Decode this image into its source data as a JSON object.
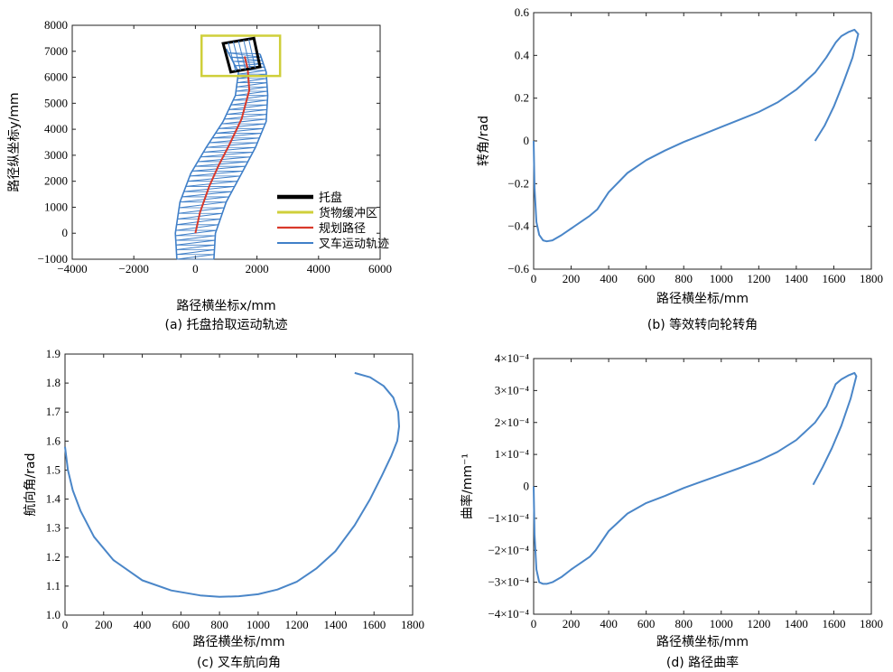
{
  "chart_data": [
    {
      "type": "line",
      "panel": "a",
      "caption": "(a) 托盘拾取运动轨迹",
      "xlabel": "路径横坐标x/mm",
      "ylabel": "路径纵坐标y/mm",
      "xlim": [
        -4000,
        6000
      ],
      "ylim": [
        -1000,
        8000
      ],
      "xticks": [
        -4000,
        -2000,
        0,
        2000,
        4000,
        6000
      ],
      "yticks": [
        -1000,
        0,
        1000,
        2000,
        3000,
        4000,
        5000,
        6000,
        7000,
        8000
      ],
      "xtick_labels": [
        "−4000",
        "−2000",
        "0",
        "2000",
        "4000",
        "6000"
      ],
      "ytick_labels": [
        "−1000",
        "0",
        "1000",
        "2000",
        "3000",
        "4000",
        "5000",
        "6000",
        "7000",
        "8000"
      ],
      "legend": [
        "托盘",
        "货物缓冲区",
        "规划路径",
        "叉车运动轨迹"
      ],
      "legend_colors": [
        "#000000",
        "#cfcf3a",
        "#d9392b",
        "#3f7fc8"
      ],
      "pallet": [
        [
          900,
          7300
        ],
        [
          1900,
          7500
        ],
        [
          2100,
          6400
        ],
        [
          1150,
          6200
        ]
      ],
      "buffer_zone": {
        "x": [
          200,
          2750
        ],
        "y": [
          6050,
          7600
        ]
      },
      "planned_path": {
        "x": [
          0,
          150,
          450,
          750,
          1100,
          1500,
          1750,
          1700,
          1600
        ],
        "y": [
          0,
          800,
          1800,
          2600,
          3400,
          4400,
          5500,
          6300,
          6800
        ]
      },
      "body_sweep": {
        "left_x": [
          -600,
          -650,
          -500,
          -150,
          350,
          900,
          1300,
          1400,
          1000
        ],
        "left_y": [
          -1000,
          0,
          1200,
          2300,
          3300,
          4300,
          5300,
          6200,
          7100
        ],
        "right_x": [
          600,
          650,
          1000,
          1500,
          1950,
          2300,
          2350,
          2300,
          2100
        ],
        "right_y": [
          -1000,
          0,
          1200,
          2300,
          3300,
          4300,
          5300,
          6200,
          6900
        ]
      }
    },
    {
      "type": "line",
      "panel": "b",
      "caption": "(b) 等效转向轮转角",
      "xlabel": "路径横坐标/mm",
      "ylabel": "转角/rad",
      "xlim": [
        0,
        1800
      ],
      "ylim": [
        -0.6,
        0.6
      ],
      "xticks": [
        0,
        200,
        400,
        600,
        800,
        1000,
        1200,
        1400,
        1600,
        1800
      ],
      "yticks": [
        -0.6,
        -0.4,
        -0.2,
        0,
        0.2,
        0.4,
        0.6
      ],
      "xtick_labels": [
        "0",
        "200",
        "400",
        "600",
        "800",
        "1000",
        "1200",
        "1400",
        "1600",
        "1800"
      ],
      "ytick_labels": [
        "−0.6",
        "−0.4",
        "−0.2",
        "0",
        "0.2",
        "0.4",
        "0.6"
      ],
      "series": [
        {
          "x": [
            0,
            5,
            15,
            30,
            50,
            70,
            100,
            150,
            200,
            250,
            300,
            340,
            400,
            500,
            600,
            700,
            800,
            900,
            1000,
            1100,
            1200,
            1300,
            1400,
            1500,
            1560,
            1610,
            1640,
            1680,
            1710,
            1730,
            1700,
            1650,
            1600,
            1550,
            1500
          ],
          "y": [
            0.0,
            -0.22,
            -0.38,
            -0.44,
            -0.465,
            -0.47,
            -0.465,
            -0.44,
            -0.41,
            -0.38,
            -0.35,
            -0.32,
            -0.24,
            -0.15,
            -0.09,
            -0.045,
            -0.005,
            0.03,
            0.065,
            0.1,
            0.135,
            0.18,
            0.24,
            0.32,
            0.39,
            0.46,
            0.49,
            0.51,
            0.52,
            0.5,
            0.39,
            0.27,
            0.16,
            0.07,
            0.0
          ]
        }
      ]
    },
    {
      "type": "line",
      "panel": "c",
      "caption": "(c) 叉车航向角",
      "xlabel": "路径横坐标/mm",
      "ylabel": "航向角/rad",
      "xlim": [
        0,
        1800
      ],
      "ylim": [
        1.0,
        1.9
      ],
      "xticks": [
        0,
        200,
        400,
        600,
        800,
        1000,
        1200,
        1400,
        1600,
        1800
      ],
      "yticks": [
        1.0,
        1.1,
        1.2,
        1.3,
        1.4,
        1.5,
        1.6,
        1.7,
        1.8,
        1.9
      ],
      "xtick_labels": [
        "0",
        "200",
        "400",
        "600",
        "800",
        "1000",
        "1200",
        "1400",
        "1600",
        "1800"
      ],
      "ytick_labels": [
        "1.0",
        "1.1",
        "1.2",
        "1.3",
        "1.4",
        "1.5",
        "1.6",
        "1.7",
        "1.8",
        "1.9"
      ],
      "series": [
        {
          "x": [
            0,
            15,
            40,
            80,
            150,
            250,
            400,
            550,
            700,
            800,
            900,
            1000,
            1100,
            1200,
            1300,
            1400,
            1500,
            1580,
            1640,
            1690,
            1720,
            1730,
            1725,
            1700,
            1650,
            1580,
            1500
          ],
          "y": [
            1.58,
            1.5,
            1.43,
            1.36,
            1.27,
            1.19,
            1.12,
            1.085,
            1.068,
            1.063,
            1.065,
            1.072,
            1.088,
            1.115,
            1.16,
            1.22,
            1.31,
            1.4,
            1.48,
            1.55,
            1.6,
            1.65,
            1.7,
            1.75,
            1.79,
            1.82,
            1.835
          ]
        }
      ]
    },
    {
      "type": "line",
      "panel": "d",
      "caption": "(d) 路径曲率",
      "xlabel": "路径横坐标/mm",
      "ylabel": "曲率/mm⁻¹",
      "xlim": [
        0,
        1800
      ],
      "ylim": [
        -0.0004,
        0.0004
      ],
      "xticks": [
        0,
        200,
        400,
        600,
        800,
        1000,
        1200,
        1400,
        1600,
        1800
      ],
      "yticks": [
        -0.0004,
        -0.0003,
        -0.0002,
        -0.0001,
        0,
        0.0001,
        0.0002,
        0.0003,
        0.0004
      ],
      "xtick_labels": [
        "0",
        "200",
        "400",
        "600",
        "800",
        "1000",
        "1200",
        "1400",
        "1600",
        "1800"
      ],
      "ytick_labels": [
        "−4×10⁻⁴",
        "−3×10⁻⁴",
        "−2×10⁻⁴",
        "−1×10⁻⁴",
        "0",
        "1×10⁻⁴",
        "2×10⁻⁴",
        "3×10⁻⁴",
        "4×10⁻⁴"
      ],
      "series": [
        {
          "x": [
            0,
            5,
            15,
            30,
            50,
            70,
            100,
            150,
            200,
            250,
            300,
            330,
            400,
            500,
            600,
            700,
            800,
            900,
            1000,
            1100,
            1200,
            1300,
            1400,
            1500,
            1560,
            1610,
            1640,
            1680,
            1710,
            1720,
            1690,
            1640,
            1590,
            1540,
            1490
          ],
          "y": [
            0.0,
            -0.00015,
            -0.00026,
            -0.0003,
            -0.000305,
            -0.000305,
            -0.0003,
            -0.000283,
            -0.00026,
            -0.00024,
            -0.00022,
            -0.0002,
            -0.00014,
            -8.5e-05,
            -5.2e-05,
            -3e-05,
            -5e-06,
            1.6e-05,
            3.7e-05,
            5.8e-05,
            8e-05,
            0.000108,
            0.000145,
            0.0002,
            0.00025,
            0.00032,
            0.000335,
            0.000348,
            0.000355,
            0.000345,
            0.000275,
            0.00019,
            0.00012,
            6e-05,
            5e-06
          ]
        }
      ]
    }
  ]
}
